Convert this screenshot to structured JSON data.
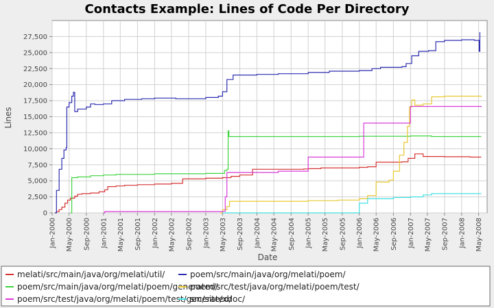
{
  "chart_data": {
    "type": "line",
    "title": "Contacts Example: Lines of Code Per Directory",
    "xlabel": "Date",
    "ylabel": "Lines",
    "x_axis_type": "date",
    "xlim": [
      "2000-01-01",
      "2008-07-01"
    ],
    "ylim": [
      0,
      30000
    ],
    "grid": true,
    "legend_position": "bottom",
    "y_ticks": [
      {
        "value": 0,
        "label": "0"
      },
      {
        "value": 2500,
        "label": "2,500"
      },
      {
        "value": 5000,
        "label": "5,000"
      },
      {
        "value": 7500,
        "label": "7,500"
      },
      {
        "value": 10000,
        "label": "10,000"
      },
      {
        "value": 12500,
        "label": "12,500"
      },
      {
        "value": 15000,
        "label": "15,000"
      },
      {
        "value": 17500,
        "label": "17,500"
      },
      {
        "value": 20000,
        "label": "20,000"
      },
      {
        "value": 22500,
        "label": "22,500"
      },
      {
        "value": 25000,
        "label": "25,000"
      },
      {
        "value": 27500,
        "label": "27,500"
      }
    ],
    "x_ticks": [
      {
        "value": "2000-01-01",
        "label": "Jan-2000"
      },
      {
        "value": "2000-05-01",
        "label": "May-2000"
      },
      {
        "value": "2000-09-01",
        "label": "Sep-2000"
      },
      {
        "value": "2001-01-01",
        "label": "Jan-2001"
      },
      {
        "value": "2001-05-01",
        "label": "May-2001"
      },
      {
        "value": "2001-09-01",
        "label": "Sep-2001"
      },
      {
        "value": "2002-01-01",
        "label": "Jan-2002"
      },
      {
        "value": "2002-05-01",
        "label": "May-2002"
      },
      {
        "value": "2002-09-01",
        "label": "Sep-2002"
      },
      {
        "value": "2003-01-01",
        "label": "Jan-2003"
      },
      {
        "value": "2003-05-01",
        "label": "May-2003"
      },
      {
        "value": "2003-09-01",
        "label": "Sep-2003"
      },
      {
        "value": "2004-01-01",
        "label": "Jan-2004"
      },
      {
        "value": "2004-05-01",
        "label": "May-2004"
      },
      {
        "value": "2004-09-01",
        "label": "Sep-2004"
      },
      {
        "value": "2005-01-01",
        "label": "Jan-2005"
      },
      {
        "value": "2005-05-01",
        "label": "May-2005"
      },
      {
        "value": "2005-09-01",
        "label": "Sep-2005"
      },
      {
        "value": "2006-01-01",
        "label": "Jan-2006"
      },
      {
        "value": "2006-05-01",
        "label": "May-2006"
      },
      {
        "value": "2006-09-01",
        "label": "Sep-2006"
      },
      {
        "value": "2007-01-01",
        "label": "Jan-2007"
      },
      {
        "value": "2007-05-01",
        "label": "May-2007"
      },
      {
        "value": "2007-09-01",
        "label": "Sep-2007"
      },
      {
        "value": "2008-01-01",
        "label": "Jan-2008"
      },
      {
        "value": "2008-05-01",
        "label": "May-2008"
      }
    ],
    "series": [
      {
        "name": "melati/src/main/java/org/melati/util/",
        "color": "#d63232",
        "points": [
          [
            "2000-01-20",
            0
          ],
          [
            "2000-02-01",
            200
          ],
          [
            "2000-02-20",
            500
          ],
          [
            "2000-03-10",
            900
          ],
          [
            "2000-04-01",
            1500
          ],
          [
            "2000-04-20",
            2000
          ],
          [
            "2000-05-10",
            2300
          ],
          [
            "2000-06-10",
            2600
          ],
          [
            "2000-07-01",
            2900
          ],
          [
            "2000-08-01",
            3000
          ],
          [
            "2000-10-01",
            3100
          ],
          [
            "2000-12-01",
            3300
          ],
          [
            "2001-01-10",
            3600
          ],
          [
            "2001-02-01",
            4100
          ],
          [
            "2001-04-01",
            4200
          ],
          [
            "2001-06-01",
            4300
          ],
          [
            "2001-09-01",
            4400
          ],
          [
            "2002-01-01",
            4500
          ],
          [
            "2002-05-01",
            4600
          ],
          [
            "2002-07-20",
            5300
          ],
          [
            "2003-01-01",
            5400
          ],
          [
            "2003-05-01",
            5500
          ],
          [
            "2003-07-01",
            5700
          ],
          [
            "2003-09-01",
            5900
          ],
          [
            "2003-12-01",
            6800
          ],
          [
            "2004-06-01",
            6800
          ],
          [
            "2004-12-01",
            6850
          ],
          [
            "2005-01-01",
            6900
          ],
          [
            "2005-04-01",
            7000
          ],
          [
            "2006-01-01",
            7100
          ],
          [
            "2006-03-01",
            7200
          ],
          [
            "2006-05-01",
            7900
          ],
          [
            "2006-11-01",
            7950
          ],
          [
            "2006-12-15",
            8500
          ],
          [
            "2007-02-01",
            9200
          ],
          [
            "2007-04-01",
            8800
          ],
          [
            "2007-09-01",
            8750
          ],
          [
            "2008-03-01",
            8700
          ],
          [
            "2008-05-20",
            8700
          ]
        ]
      },
      {
        "name": "poem/src/main/java/org/melati/poem/",
        "color": "#2b2bb0",
        "points": [
          [
            "2000-01-20",
            0
          ],
          [
            "2000-02-01",
            3500
          ],
          [
            "2000-02-20",
            6800
          ],
          [
            "2000-03-10",
            8500
          ],
          [
            "2000-03-25",
            9800
          ],
          [
            "2000-04-10",
            10200
          ],
          [
            "2000-04-15",
            16500
          ],
          [
            "2000-05-01",
            17200
          ],
          [
            "2000-05-20",
            18200
          ],
          [
            "2000-06-01",
            18800
          ],
          [
            "2000-06-10",
            15800
          ],
          [
            "2000-07-01",
            16200
          ],
          [
            "2000-09-01",
            16500
          ],
          [
            "2000-10-01",
            17000
          ],
          [
            "2000-11-01",
            16900
          ],
          [
            "2001-01-01",
            17000
          ],
          [
            "2001-03-01",
            17500
          ],
          [
            "2001-06-01",
            17700
          ],
          [
            "2001-10-01",
            17800
          ],
          [
            "2002-01-01",
            17900
          ],
          [
            "2002-06-01",
            17800
          ],
          [
            "2003-01-01",
            18000
          ],
          [
            "2003-04-01",
            18200
          ],
          [
            "2003-05-01",
            18900
          ],
          [
            "2003-06-01",
            20800
          ],
          [
            "2003-07-15",
            21500
          ],
          [
            "2004-01-01",
            21600
          ],
          [
            "2004-06-01",
            21700
          ],
          [
            "2005-01-01",
            21900
          ],
          [
            "2005-06-01",
            22100
          ],
          [
            "2006-01-01",
            22200
          ],
          [
            "2006-04-01",
            22500
          ],
          [
            "2006-06-01",
            22700
          ],
          [
            "2006-11-01",
            22800
          ],
          [
            "2006-12-01",
            23300
          ],
          [
            "2007-01-10",
            24500
          ],
          [
            "2007-03-01",
            25200
          ],
          [
            "2007-05-10",
            25300
          ],
          [
            "2007-07-01",
            26700
          ],
          [
            "2007-09-01",
            26900
          ],
          [
            "2008-01-01",
            27000
          ],
          [
            "2008-04-01",
            26900
          ],
          [
            "2008-05-05",
            25200
          ],
          [
            "2008-05-10",
            28200
          ]
        ]
      },
      {
        "name": "poem/src/main/java/org/melati/poem/generated/",
        "color": "#3ed43e",
        "points": [
          [
            "2000-05-10",
            0
          ],
          [
            "2000-05-20",
            5500
          ],
          [
            "2000-07-01",
            5600
          ],
          [
            "2000-10-01",
            5800
          ],
          [
            "2001-01-01",
            5900
          ],
          [
            "2001-04-01",
            6000
          ],
          [
            "2002-01-01",
            6100
          ],
          [
            "2003-01-01",
            6150
          ],
          [
            "2003-05-15",
            6600
          ],
          [
            "2003-06-01",
            6800
          ],
          [
            "2003-06-10",
            12800
          ],
          [
            "2003-06-15",
            11900
          ],
          [
            "2004-01-01",
            11900
          ],
          [
            "2005-01-01",
            11900
          ],
          [
            "2006-01-01",
            11950
          ],
          [
            "2007-01-01",
            12000
          ],
          [
            "2007-06-01",
            11900
          ],
          [
            "2008-05-20",
            11900
          ]
        ]
      },
      {
        "name": "poem/src/test/java/org/melati/poem/test/",
        "color": "#e8c830",
        "points": [
          [
            "2003-04-15",
            0
          ],
          [
            "2003-05-01",
            500
          ],
          [
            "2003-06-01",
            1000
          ],
          [
            "2003-06-20",
            1800
          ],
          [
            "2004-01-01",
            1800
          ],
          [
            "2005-01-01",
            1900
          ],
          [
            "2005-08-01",
            2000
          ],
          [
            "2006-01-01",
            2200
          ],
          [
            "2006-03-01",
            2700
          ],
          [
            "2006-05-01",
            4800
          ],
          [
            "2006-08-01",
            5100
          ],
          [
            "2006-09-01",
            6500
          ],
          [
            "2006-10-15",
            9000
          ],
          [
            "2006-11-15",
            11000
          ],
          [
            "2006-12-10",
            13500
          ],
          [
            "2006-12-25",
            16500
          ],
          [
            "2007-01-10",
            17600
          ],
          [
            "2007-02-01",
            16800
          ],
          [
            "2007-04-01",
            17000
          ],
          [
            "2007-06-01",
            18100
          ],
          [
            "2007-09-01",
            18200
          ],
          [
            "2008-01-01",
            18200
          ],
          [
            "2008-05-20",
            18100
          ]
        ]
      },
      {
        "name": "poem/src/test/java/org/melati/poem/test/generated/",
        "color": "#d83ad8",
        "points": [
          [
            "2001-01-01",
            0
          ],
          [
            "2001-01-10",
            200
          ],
          [
            "2002-01-01",
            200
          ],
          [
            "2003-01-01",
            200
          ],
          [
            "2003-05-01",
            250
          ],
          [
            "2003-05-20",
            2500
          ],
          [
            "2003-06-01",
            6300
          ],
          [
            "2004-01-01",
            6300
          ],
          [
            "2004-06-01",
            6500
          ],
          [
            "2005-01-01",
            8700
          ],
          [
            "2005-06-01",
            8700
          ],
          [
            "2006-01-01",
            8700
          ],
          [
            "2006-02-01",
            14000
          ],
          [
            "2006-12-01",
            14000
          ],
          [
            "2007-01-01",
            16600
          ],
          [
            "2007-03-01",
            16600
          ],
          [
            "2008-05-20",
            16500
          ]
        ]
      },
      {
        "name": "src/site/xdoc/",
        "color": "#40e0e0",
        "points": [
          [
            "2003-05-01",
            0
          ],
          [
            "2005-12-15",
            0
          ],
          [
            "2006-01-01",
            1500
          ],
          [
            "2006-03-01",
            2200
          ],
          [
            "2006-09-01",
            2400
          ],
          [
            "2007-01-01",
            2500
          ],
          [
            "2007-04-01",
            2800
          ],
          [
            "2007-06-01",
            3000
          ],
          [
            "2008-05-20",
            3000
          ]
        ]
      }
    ]
  }
}
